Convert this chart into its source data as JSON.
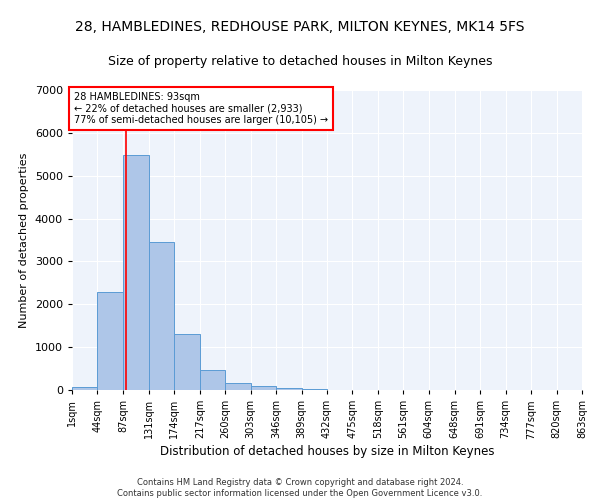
{
  "title": "28, HAMBLEDINES, REDHOUSE PARK, MILTON KEYNES, MK14 5FS",
  "subtitle": "Size of property relative to detached houses in Milton Keynes",
  "xlabel": "Distribution of detached houses by size in Milton Keynes",
  "ylabel": "Number of detached properties",
  "footnote1": "Contains HM Land Registry data © Crown copyright and database right 2024.",
  "footnote2": "Contains public sector information licensed under the Open Government Licence v3.0.",
  "annotation_line1": "28 HAMBLEDINES: 93sqm",
  "annotation_line2": "← 22% of detached houses are smaller (2,933)",
  "annotation_line3": "77% of semi-detached houses are larger (10,105) →",
  "bar_edges": [
    1,
    44,
    87,
    131,
    174,
    217,
    260,
    303,
    346,
    389,
    432,
    475,
    518,
    561,
    604,
    648,
    691,
    734,
    777,
    820,
    863
  ],
  "bar_heights": [
    80,
    2280,
    5480,
    3450,
    1310,
    470,
    165,
    90,
    55,
    35,
    0,
    0,
    0,
    0,
    0,
    0,
    0,
    0,
    0,
    0
  ],
  "bar_color": "#aec6e8",
  "bar_edgecolor": "#5b9bd5",
  "red_line_x": 93,
  "ylim": [
    0,
    7000
  ],
  "xlim": [
    1,
    863
  ],
  "background_color": "#eef3fb",
  "grid_color": "#ffffff",
  "title_fontsize": 10,
  "subtitle_fontsize": 9,
  "xlabel_fontsize": 8.5,
  "ylabel_fontsize": 8,
  "tick_fontsize": 7,
  "annotation_fontsize": 7,
  "footnote_fontsize": 6,
  "tick_labels": [
    "1sqm",
    "44sqm",
    "87sqm",
    "131sqm",
    "174sqm",
    "217sqm",
    "260sqm",
    "303sqm",
    "346sqm",
    "389sqm",
    "432sqm",
    "475sqm",
    "518sqm",
    "561sqm",
    "604sqm",
    "648sqm",
    "691sqm",
    "734sqm",
    "777sqm",
    "820sqm",
    "863sqm"
  ],
  "yticks": [
    0,
    1000,
    2000,
    3000,
    4000,
    5000,
    6000,
    7000
  ]
}
